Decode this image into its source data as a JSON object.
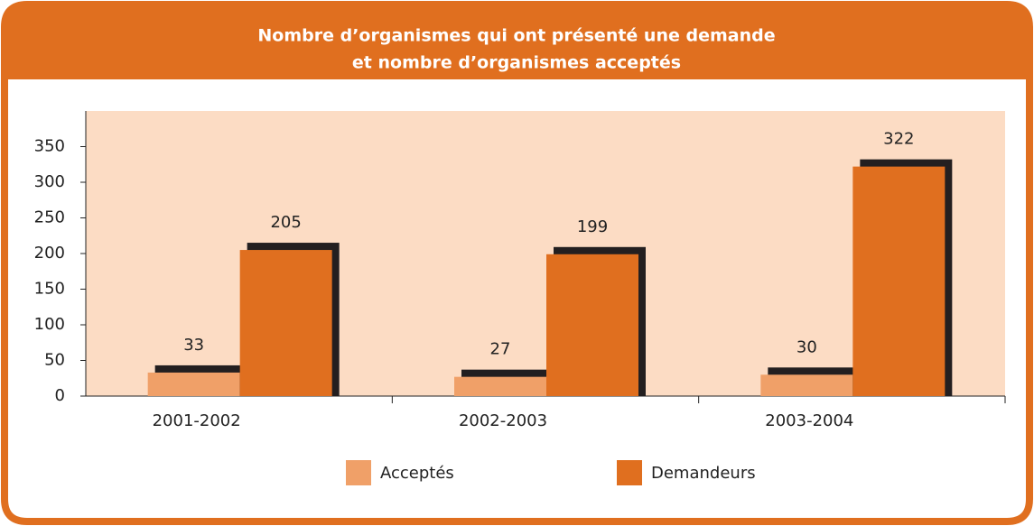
{
  "chart_data": {
    "type": "bar",
    "title": [
      "Nombre d’organismes qui ont présenté une demande",
      "et nombre d’organismes acceptés"
    ],
    "categories": [
      "2001-2002",
      "2002-2003",
      "2003-2004"
    ],
    "series": [
      {
        "name": "Acceptés",
        "color": "#f0a068",
        "values": [
          33,
          27,
          30
        ]
      },
      {
        "name": "Demandeurs",
        "color": "#e06f1f",
        "values": [
          205,
          199,
          322
        ]
      }
    ],
    "ylim": [
      0,
      400
    ],
    "yticks": [
      0,
      50,
      100,
      150,
      200,
      250,
      300,
      350
    ],
    "shadow_color": "#231f20",
    "plot_background": "#fcdcc4",
    "frame_color": "#e06f1f"
  }
}
